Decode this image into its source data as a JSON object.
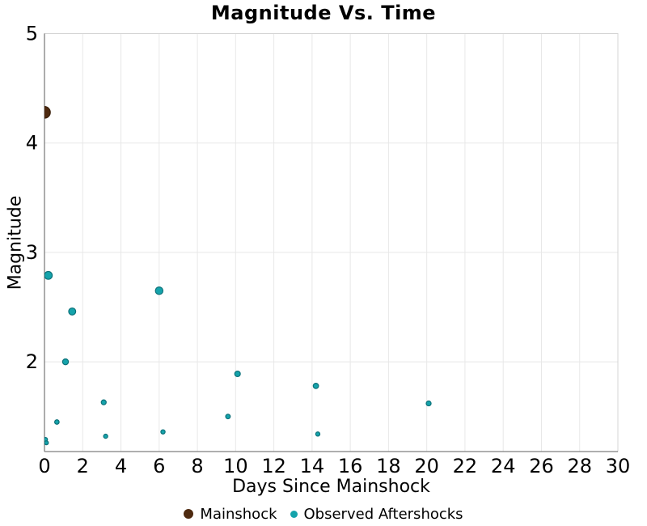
{
  "chart_data": {
    "type": "scatter",
    "title": "Magnitude Vs. Time",
    "xlabel": "Days Since Mainshock",
    "ylabel": "Magnitude",
    "xlim": [
      0,
      30
    ],
    "ylim": [
      1.18,
      5
    ],
    "x_ticks": [
      0,
      2,
      4,
      6,
      8,
      10,
      12,
      14,
      16,
      18,
      20,
      22,
      24,
      26,
      28,
      30
    ],
    "y_ticks": [
      2,
      3,
      4,
      5
    ],
    "grid": true,
    "legend_position": "bottom-center",
    "series": [
      {
        "name": "Mainshock",
        "color": "#4e2a10",
        "stroke": "#3a1f0a",
        "points": [
          {
            "x": 0,
            "y": 4.28
          }
        ]
      },
      {
        "name": "Observed Aftershocks",
        "color": "#15a3ab",
        "stroke": "#0c7179",
        "points": [
          {
            "x": 0.05,
            "y": 1.29
          },
          {
            "x": 0.1,
            "y": 1.26
          },
          {
            "x": 0.2,
            "y": 2.79
          },
          {
            "x": 0.65,
            "y": 1.45
          },
          {
            "x": 1.1,
            "y": 2.0
          },
          {
            "x": 1.45,
            "y": 2.46
          },
          {
            "x": 3.1,
            "y": 1.63
          },
          {
            "x": 3.2,
            "y": 1.32
          },
          {
            "x": 6.0,
            "y": 2.65
          },
          {
            "x": 6.2,
            "y": 1.36
          },
          {
            "x": 9.6,
            "y": 1.5
          },
          {
            "x": 10.1,
            "y": 1.89
          },
          {
            "x": 14.2,
            "y": 1.78
          },
          {
            "x": 14.3,
            "y": 1.34
          },
          {
            "x": 20.1,
            "y": 1.62
          }
        ]
      }
    ],
    "style": {
      "background": "#ffffff",
      "grid_color": "#e8e8e8",
      "border_color": "#d4d4d4",
      "axis_color": "#7f7f7f",
      "text_color": "#000000"
    }
  }
}
